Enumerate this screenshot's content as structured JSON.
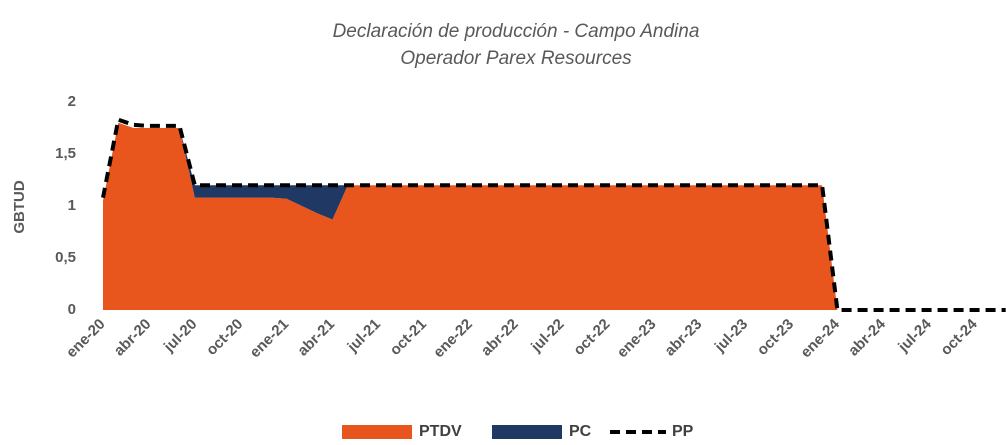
{
  "chart_data": {
    "type": "area",
    "title": "Declaración de producción - Campo Andina",
    "subtitle": "Operador Parex Resources",
    "y_label": "GBTUD",
    "categories": [
      "ene-20",
      null,
      null,
      "abr-20",
      null,
      null,
      "jul-20",
      null,
      null,
      "oct-20",
      null,
      null,
      "ene-21",
      null,
      null,
      "abr-21",
      null,
      null,
      "jul-21",
      null,
      null,
      "oct-21",
      null,
      null,
      "ene-22",
      null,
      null,
      "abr-22",
      null,
      null,
      "jul-22",
      null,
      null,
      "oct-22",
      null,
      null,
      "ene-23",
      null,
      null,
      "abr-23",
      null,
      null,
      "jul-23",
      null,
      null,
      "oct-23",
      null,
      null,
      "ene-24",
      null,
      null,
      "abr-24",
      null,
      null,
      "jul-24",
      null,
      null,
      "oct-24",
      null,
      null
    ],
    "series": [
      {
        "name": "PTDV",
        "color": "#e8561e",
        "kind": "area",
        "values": [
          1.05,
          1.8,
          1.75,
          1.75,
          1.75,
          1.75,
          1.08,
          1.08,
          1.08,
          1.08,
          1.08,
          1.08,
          1.07,
          1.0,
          0.93,
          0.87,
          1.2,
          1.2,
          1.2,
          1.2,
          1.2,
          1.2,
          1.2,
          1.2,
          1.2,
          1.2,
          1.2,
          1.2,
          1.2,
          1.2,
          1.2,
          1.2,
          1.2,
          1.2,
          1.2,
          1.2,
          1.2,
          1.2,
          1.2,
          1.2,
          1.2,
          1.2,
          1.2,
          1.2,
          1.2,
          1.2,
          1.2,
          1.2,
          0,
          0,
          0,
          0,
          0,
          0,
          0,
          0,
          0,
          0,
          0,
          0
        ]
      },
      {
        "name": "PC",
        "color": "#203864",
        "kind": "area",
        "values": [
          0,
          0,
          0,
          0,
          0,
          0,
          0.12,
          0.12,
          0.12,
          0.12,
          0.12,
          0.12,
          0.13,
          0.2,
          0.27,
          0.33,
          0,
          0,
          0,
          0,
          0,
          0,
          0,
          0,
          0,
          0,
          0,
          0,
          0,
          0,
          0,
          0,
          0,
          0,
          0,
          0,
          0,
          0,
          0,
          0,
          0,
          0,
          0,
          0,
          0,
          0,
          0,
          0,
          0,
          0,
          0,
          0,
          0,
          0,
          0,
          0,
          0,
          0,
          0,
          0
        ]
      },
      {
        "name": "PP",
        "color": "#000000",
        "kind": "line",
        "values": [
          1.08,
          1.83,
          1.78,
          1.77,
          1.77,
          1.77,
          1.2,
          1.2,
          1.2,
          1.2,
          1.2,
          1.2,
          1.2,
          1.2,
          1.2,
          1.2,
          1.2,
          1.2,
          1.2,
          1.2,
          1.2,
          1.2,
          1.2,
          1.2,
          1.2,
          1.2,
          1.2,
          1.2,
          1.2,
          1.2,
          1.2,
          1.2,
          1.2,
          1.2,
          1.2,
          1.2,
          1.2,
          1.2,
          1.2,
          1.2,
          1.2,
          1.2,
          1.2,
          1.2,
          1.2,
          1.2,
          1.2,
          1.2,
          0,
          0,
          0,
          0,
          0,
          0,
          0,
          0,
          0,
          0,
          0,
          0
        ]
      }
    ],
    "ylim": [
      0,
      2
    ],
    "yticks": [
      0,
      {
        "value": 0.5,
        "label": "0,5"
      },
      1,
      {
        "value": 1.5,
        "label": "1,5"
      },
      2
    ],
    "grid": false,
    "legend": "bottom"
  }
}
